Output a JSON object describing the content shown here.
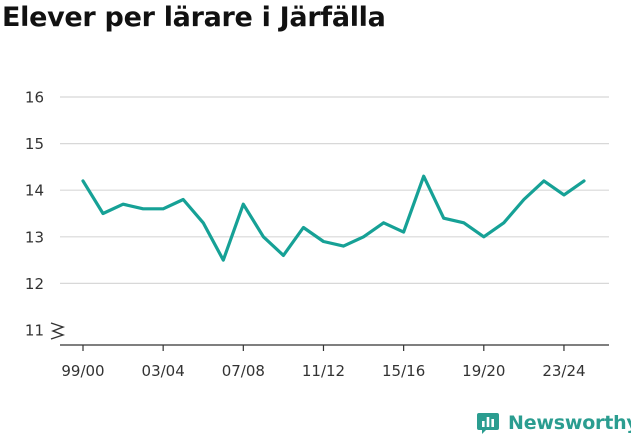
{
  "title": "Elever per lärare i Järfälla",
  "brand": {
    "name": "Newsworthy",
    "icon": "newsworthy-logo-icon",
    "color": "#2b9d90"
  },
  "colors": {
    "line": "#16a196",
    "grid": "#d8d8d8",
    "axis": "#333333"
  },
  "chart_data": {
    "type": "line",
    "title": "Elever per lärare i Järfälla",
    "xlabel": "",
    "ylabel": "",
    "x": [
      "99/00",
      "00/01",
      "01/02",
      "02/03",
      "03/04",
      "04/05",
      "05/06",
      "06/07",
      "07/08",
      "08/09",
      "09/10",
      "10/11",
      "11/12",
      "12/13",
      "13/14",
      "14/15",
      "15/16",
      "16/17",
      "17/18",
      "18/19",
      "19/20",
      "20/21",
      "21/22",
      "22/23",
      "23/24",
      "24/25"
    ],
    "tick_labels": [
      "99/00",
      "03/04",
      "07/08",
      "11/12",
      "15/16",
      "19/20",
      "23/24"
    ],
    "values": [
      14.2,
      13.5,
      13.7,
      13.6,
      13.6,
      13.8,
      13.3,
      12.5,
      13.7,
      13.0,
      12.6,
      13.2,
      12.9,
      12.8,
      13.0,
      13.3,
      13.1,
      14.3,
      13.4,
      13.3,
      13.0,
      13.3,
      13.8,
      14.2,
      13.9,
      14.2
    ],
    "yticks": [
      11,
      12,
      13,
      14,
      15,
      16
    ],
    "ylim": [
      11,
      16
    ],
    "y_axis_break": true,
    "grid": true,
    "legend": "none"
  }
}
